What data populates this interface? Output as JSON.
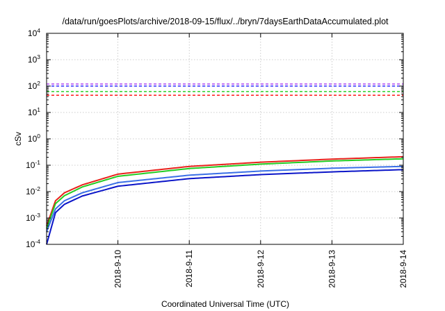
{
  "chart_data": {
    "type": "line",
    "title": "/data/run/goesPlots/archive/2018-09-15/flux/../bryn/7daysEarthDataAccumulated.plot",
    "xlabel": "Coordinated Universal Time (UTC)",
    "ylabel": "cSv",
    "x_scale": "time",
    "y_scale": "log",
    "xlim": [
      "2018-09-09T00:00",
      "2018-09-14T00:00"
    ],
    "ylim": [
      0.0001,
      10000
    ],
    "x_ticks": [
      "2018-9-10",
      "2018-9-11",
      "2018-9-12",
      "2018-9-13",
      "2018-9-14"
    ],
    "y_ticks": [
      {
        "value": 0.0001,
        "base": "10",
        "exp": "-4"
      },
      {
        "value": 0.001,
        "base": "10",
        "exp": "-3"
      },
      {
        "value": 0.01,
        "base": "10",
        "exp": "-2"
      },
      {
        "value": 0.1,
        "base": "10",
        "exp": "-1"
      },
      {
        "value": 1,
        "base": "10",
        "exp": "0"
      },
      {
        "value": 10,
        "base": "10",
        "exp": "1"
      },
      {
        "value": 100,
        "base": "10",
        "exp": "2"
      },
      {
        "value": 1000,
        "base": "10",
        "exp": "3"
      },
      {
        "value": 10000,
        "base": "10",
        "exp": "4"
      }
    ],
    "grid": true,
    "legend": "none",
    "thresholds": [
      {
        "value": 120,
        "color": "#a020f0",
        "style": "dashed"
      },
      {
        "value": 100,
        "color": "#0000ff",
        "style": "dashed"
      },
      {
        "value": 62,
        "color": "#00c800",
        "style": "dashed"
      },
      {
        "value": 45,
        "color": "#ff0000",
        "style": "dashed"
      }
    ],
    "series": [
      {
        "color": "#e8201a",
        "x": [
          "2018-09-09T00:00",
          "2018-09-09T03:00",
          "2018-09-09T06:00",
          "2018-09-09T12:00",
          "2018-09-10T00:00",
          "2018-09-11T00:00",
          "2018-09-12T00:00",
          "2018-09-13T00:00",
          "2018-09-14T00:00"
        ],
        "y": [
          0.0005,
          0.0045,
          0.009,
          0.018,
          0.046,
          0.09,
          0.13,
          0.17,
          0.21
        ]
      },
      {
        "color": "#22cc22",
        "x": [
          "2018-09-09T00:00",
          "2018-09-09T03:00",
          "2018-09-09T06:00",
          "2018-09-09T12:00",
          "2018-09-10T00:00",
          "2018-09-11T00:00",
          "2018-09-12T00:00",
          "2018-09-13T00:00",
          "2018-09-14T00:00"
        ],
        "y": [
          0.0004,
          0.0035,
          0.007,
          0.015,
          0.038,
          0.075,
          0.11,
          0.145,
          0.175
        ]
      },
      {
        "color": "#3a6fe6",
        "x": [
          "2018-09-09T00:00",
          "2018-09-09T03:00",
          "2018-09-09T06:00",
          "2018-09-09T12:00",
          "2018-09-10T00:00",
          "2018-09-11T00:00",
          "2018-09-12T00:00",
          "2018-09-13T00:00",
          "2018-09-14T00:00"
        ],
        "y": [
          0.0003,
          0.0022,
          0.0045,
          0.009,
          0.022,
          0.042,
          0.06,
          0.077,
          0.09
        ]
      },
      {
        "color": "#0a14c8",
        "x": [
          "2018-09-09T00:00",
          "2018-09-09T03:00",
          "2018-09-09T06:00",
          "2018-09-09T12:00",
          "2018-09-10T00:00",
          "2018-09-11T00:00",
          "2018-09-12T00:00",
          "2018-09-13T00:00",
          "2018-09-14T00:00"
        ],
        "y": [
          0.0001,
          0.0016,
          0.0033,
          0.0068,
          0.016,
          0.031,
          0.044,
          0.056,
          0.068
        ]
      }
    ]
  }
}
